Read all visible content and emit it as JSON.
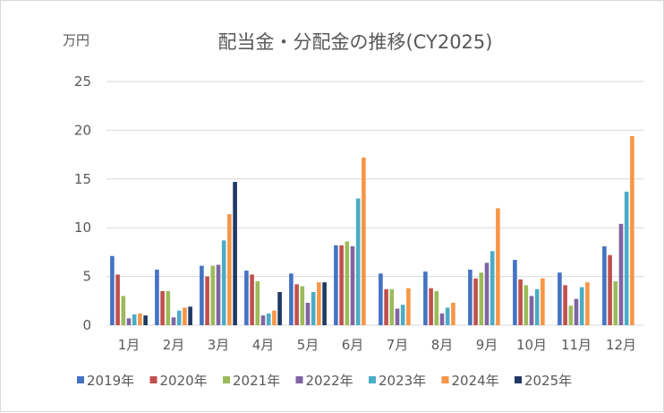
{
  "chart_data": {
    "type": "bar",
    "title": "配当金・分配金の推移(CY2025)",
    "unit_label": "万円",
    "ylim": [
      0,
      25
    ],
    "yticks": [
      "0",
      "5",
      "10",
      "15",
      "20",
      "25"
    ],
    "grid": true,
    "legend_position": "bottom",
    "categories": [
      "1月",
      "2月",
      "3月",
      "4月",
      "5月",
      "6月",
      "7月",
      "8月",
      "9月",
      "10月",
      "11月",
      "12月"
    ],
    "series": [
      {
        "name": "2019年",
        "color": "#4472c4",
        "values": [
          7.1,
          5.7,
          6.1,
          5.6,
          5.3,
          8.2,
          5.3,
          5.5,
          5.7,
          6.7,
          5.4,
          8.1
        ]
      },
      {
        "name": "2020年",
        "color": "#c0504d",
        "values": [
          5.2,
          3.5,
          5.0,
          5.2,
          4.2,
          8.2,
          3.7,
          3.8,
          4.8,
          4.7,
          4.1,
          7.2
        ]
      },
      {
        "name": "2021年",
        "color": "#9bbb59",
        "values": [
          3.0,
          3.5,
          6.1,
          4.5,
          4.0,
          8.6,
          3.7,
          3.5,
          5.4,
          4.1,
          2.0,
          4.5
        ]
      },
      {
        "name": "2022年",
        "color": "#8064a2",
        "values": [
          0.7,
          0.8,
          6.2,
          1.0,
          2.3,
          8.1,
          1.7,
          1.2,
          6.4,
          3.0,
          2.7,
          10.4
        ]
      },
      {
        "name": "2023年",
        "color": "#4bacc6",
        "values": [
          1.1,
          1.5,
          8.7,
          1.2,
          3.4,
          13.0,
          2.1,
          1.8,
          7.6,
          3.7,
          3.9,
          13.7
        ]
      },
      {
        "name": "2024年",
        "color": "#f79646",
        "values": [
          1.2,
          1.8,
          11.4,
          1.5,
          4.4,
          17.2,
          3.8,
          2.3,
          12.0,
          4.8,
          4.4,
          19.4
        ]
      },
      {
        "name": "2025年",
        "color": "#1f3864",
        "values": [
          1.0,
          1.9,
          14.7,
          3.4,
          4.4,
          null,
          null,
          null,
          null,
          null,
          null,
          null
        ]
      }
    ]
  }
}
